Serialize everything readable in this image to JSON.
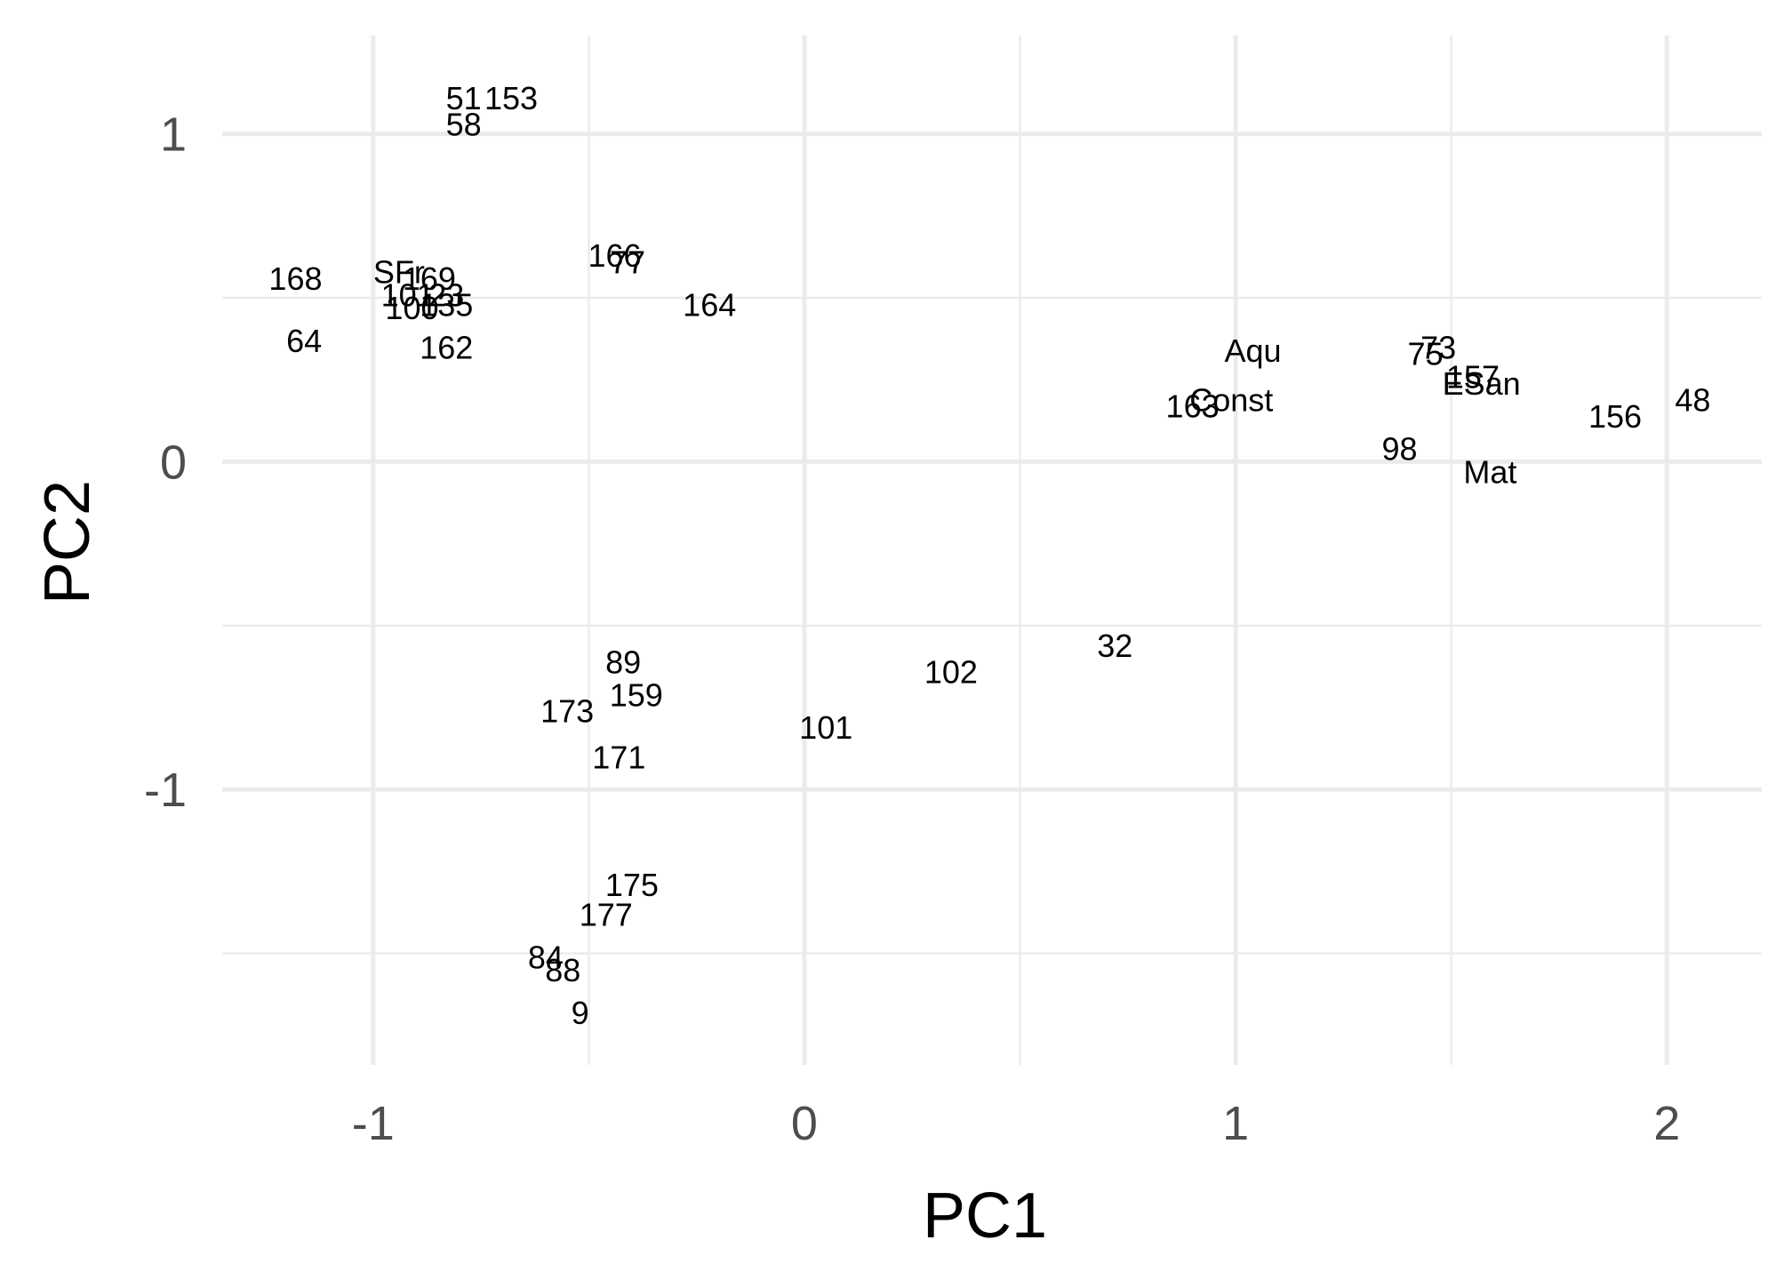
{
  "chart_data": {
    "type": "scatter",
    "title": "",
    "xlabel": "PC1",
    "ylabel": "PC2",
    "xlim": [
      -1.35,
      2.22
    ],
    "ylim": [
      -1.84,
      1.3
    ],
    "x_ticks": [
      -1,
      0,
      1,
      2
    ],
    "x_tick_labels": [
      "-1",
      "0",
      "1",
      "2"
    ],
    "y_ticks": [
      -1,
      0,
      1
    ],
    "y_tick_labels": [
      "-1",
      "0",
      "1"
    ],
    "grid": true,
    "legend": "none",
    "points": [
      {
        "label": "51",
        "x": -0.79,
        "y": 1.11
      },
      {
        "label": "153",
        "x": -0.68,
        "y": 1.11
      },
      {
        "label": "58",
        "x": -0.79,
        "y": 1.03
      },
      {
        "label": "168",
        "x": -1.18,
        "y": 0.56
      },
      {
        "label": "SFr",
        "x": -0.94,
        "y": 0.58
      },
      {
        "label": "169",
        "x": -0.87,
        "y": 0.56
      },
      {
        "label": "101",
        "x": -0.92,
        "y": 0.51
      },
      {
        "label": "23",
        "x": -0.83,
        "y": 0.51
      },
      {
        "label": "100",
        "x": -0.91,
        "y": 0.47
      },
      {
        "label": "135",
        "x": -0.83,
        "y": 0.48
      },
      {
        "label": "64",
        "x": -1.16,
        "y": 0.37
      },
      {
        "label": "162",
        "x": -0.83,
        "y": 0.35
      },
      {
        "label": "166",
        "x": -0.44,
        "y": 0.63
      },
      {
        "label": "77",
        "x": -0.41,
        "y": 0.61
      },
      {
        "label": "164",
        "x": -0.22,
        "y": 0.48
      },
      {
        "label": "Aqu",
        "x": 1.04,
        "y": 0.34
      },
      {
        "label": "75",
        "x": 1.44,
        "y": 0.33
      },
      {
        "label": "73",
        "x": 1.47,
        "y": 0.35
      },
      {
        "label": "157",
        "x": 1.55,
        "y": 0.26
      },
      {
        "label": "ESan",
        "x": 1.57,
        "y": 0.24
      },
      {
        "label": "163",
        "x": 0.9,
        "y": 0.17
      },
      {
        "label": "Const",
        "x": 0.99,
        "y": 0.19
      },
      {
        "label": "156",
        "x": 1.88,
        "y": 0.14
      },
      {
        "label": "48",
        "x": 2.06,
        "y": 0.19
      },
      {
        "label": "98",
        "x": 1.38,
        "y": 0.04
      },
      {
        "label": "Mat",
        "x": 1.59,
        "y": -0.03
      },
      {
        "label": "32",
        "x": 0.72,
        "y": -0.56
      },
      {
        "label": "102",
        "x": 0.34,
        "y": -0.64
      },
      {
        "label": "89",
        "x": -0.42,
        "y": -0.61
      },
      {
        "label": "159",
        "x": -0.39,
        "y": -0.71
      },
      {
        "label": "173",
        "x": -0.55,
        "y": -0.76
      },
      {
        "label": "101",
        "x": 0.05,
        "y": -0.81
      },
      {
        "label": "171",
        "x": -0.43,
        "y": -0.9
      },
      {
        "label": "175",
        "x": -0.4,
        "y": -1.29
      },
      {
        "label": "177",
        "x": -0.46,
        "y": -1.38
      },
      {
        "label": "84",
        "x": -0.6,
        "y": -1.51
      },
      {
        "label": "88",
        "x": -0.56,
        "y": -1.55
      },
      {
        "label": "9",
        "x": -0.52,
        "y": -1.68
      }
    ]
  }
}
